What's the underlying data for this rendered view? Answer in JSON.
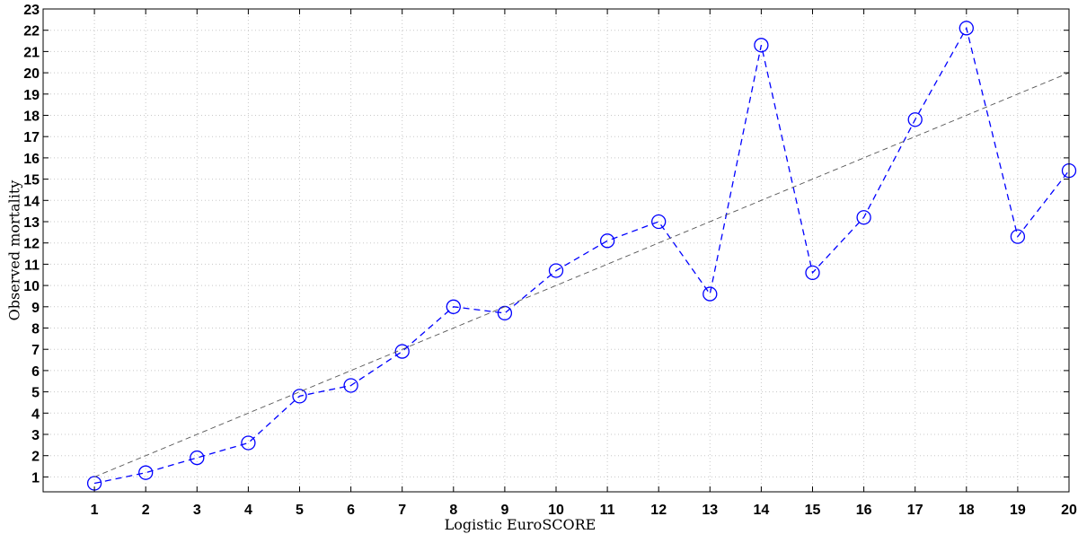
{
  "chart_data": {
    "type": "line",
    "title": "",
    "xlabel": "Logistic EuroSCORE",
    "ylabel": "Observed mortality",
    "xlim": [
      0,
      20
    ],
    "ylim": [
      0.3,
      23
    ],
    "xticks": [
      1,
      2,
      3,
      4,
      5,
      6,
      7,
      8,
      9,
      10,
      11,
      12,
      13,
      14,
      15,
      16,
      17,
      18,
      19,
      20
    ],
    "yticks": [
      1,
      2,
      3,
      4,
      5,
      6,
      7,
      8,
      9,
      10,
      11,
      12,
      13,
      14,
      15,
      16,
      17,
      18,
      19,
      20,
      21,
      22,
      23
    ],
    "grid": true,
    "series": [
      {
        "style": "dashed-circle-markers",
        "color": "#0000ff",
        "x": [
          1,
          2,
          3,
          4,
          5,
          6,
          7,
          8,
          9,
          10,
          11,
          12,
          13,
          14,
          15,
          16,
          17,
          18,
          19,
          20
        ],
        "y": [
          0.7,
          1.2,
          1.9,
          2.6,
          4.8,
          5.3,
          6.9,
          9.0,
          8.7,
          10.7,
          12.1,
          13.0,
          9.6,
          21.3,
          10.6,
          13.2,
          17.8,
          22.1,
          12.3,
          15.4
        ]
      },
      {
        "style": "dashed-reference-line",
        "color": "#808080",
        "x": [
          1,
          20
        ],
        "y": [
          1,
          20
        ]
      }
    ]
  }
}
